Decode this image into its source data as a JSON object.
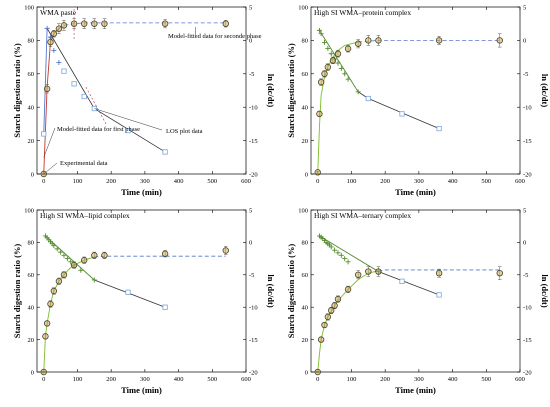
{
  "chart_data": [
    {
      "type": "scatter",
      "title": "WMA paste",
      "xlabel": "Time (min)",
      "ylabel": "Starch digestion ratio (%)",
      "y2label": "ln (dc/dt)",
      "xlim": [
        -20,
        600
      ],
      "ylim": [
        0,
        100
      ],
      "y2lim": [
        -20,
        5
      ],
      "xticks": [
        0,
        100,
        200,
        300,
        400,
        500,
        600
      ],
      "yticks": [
        0,
        20,
        40,
        60,
        80,
        100
      ],
      "y2ticks": [
        -20,
        -15,
        -10,
        -5,
        0,
        5
      ],
      "grid": false,
      "fit_left": {
        "x": [
          0,
          10,
          20,
          30,
          45,
          60,
          90,
          120,
          150,
          180,
          240,
          300,
          360,
          480,
          540
        ],
        "y": [
          0,
          52,
          79,
          84,
          87,
          89,
          90,
          90.5,
          90.5,
          90.5,
          90.5,
          90.5,
          90.5,
          90.5,
          90.5
        ]
      },
      "left_split": 45,
      "experimental": {
        "x": [
          0,
          10,
          20,
          30,
          45,
          60,
          90,
          120,
          150,
          180,
          360,
          540
        ],
        "y": [
          0,
          51,
          79,
          84,
          87,
          89,
          90,
          90,
          90,
          90,
          90,
          90
        ],
        "err": [
          0.5,
          2.5,
          2.5,
          2,
          3,
          3,
          3,
          3,
          3,
          3,
          2.5,
          2
        ]
      },
      "los": {
        "x": [
          0,
          10,
          20,
          30,
          45,
          60,
          90,
          120,
          150,
          250,
          360
        ],
        "y": [
          -14,
          1.8,
          0.5,
          -1.5,
          -3.3,
          -4.6,
          -6.5,
          -8.4,
          -10.2,
          -13.5,
          -16.7
        ]
      },
      "fit_los": {
        "x": [
          0,
          10,
          150,
          360
        ],
        "y": [
          -14,
          1.8,
          -10.2,
          -16.7
        ]
      },
      "annotations": [
        "Model-fitted data for seconde phase",
        "LOS plot data",
        "Model-fitted data for first phase",
        "Experimental data"
      ]
    },
    {
      "type": "scatter",
      "title": "High SI WMA–protein complex",
      "xlabel": "Time (min)",
      "ylabel": "Starch digestion ratio (%)",
      "y2label": "ln (dc/dt)",
      "xlim": [
        -20,
        600
      ],
      "ylim": [
        0,
        100
      ],
      "y2lim": [
        -20,
        5
      ],
      "xticks": [
        0,
        100,
        200,
        300,
        400,
        500,
        600
      ],
      "yticks": [
        0,
        20,
        40,
        60,
        80,
        100
      ],
      "y2ticks": [
        -20,
        -15,
        -10,
        -5,
        0,
        5
      ],
      "grid": false,
      "fit_left": {
        "x": [
          0,
          5,
          10,
          20,
          30,
          45,
          60,
          80,
          100,
          120,
          150,
          180,
          240,
          300,
          360,
          540
        ],
        "y": [
          0,
          28,
          47,
          58,
          64,
          70,
          74,
          77,
          78,
          79,
          79.5,
          80,
          80,
          80,
          80,
          80
        ]
      },
      "left_split": 120,
      "experimental": {
        "x": [
          0,
          5,
          10,
          20,
          30,
          45,
          60,
          90,
          120,
          150,
          180,
          360,
          540
        ],
        "y": [
          1,
          36,
          55,
          60,
          64,
          68,
          72,
          75,
          78,
          80,
          80,
          80,
          80
        ],
        "err": [
          0.5,
          1.5,
          2,
          2,
          2,
          2,
          2,
          2,
          2.5,
          3,
          3,
          2.5,
          4
        ]
      },
      "los": {
        "x": [
          5,
          10,
          20,
          30,
          40,
          50,
          60,
          70,
          80,
          90,
          120,
          150,
          250,
          360
        ],
        "y": [
          1.5,
          1.0,
          -0.3,
          -1.2,
          -2.0,
          -2.8,
          -3.4,
          -4.2,
          -5.0,
          -5.8,
          -7.7,
          -8.7,
          -11.0,
          -13.2
        ]
      },
      "fit_los": {
        "x": [
          5,
          120,
          150,
          360
        ],
        "y": [
          1.5,
          -7.7,
          -8.7,
          -13.2
        ]
      },
      "annotations": []
    },
    {
      "type": "scatter",
      "title": "High SI WMA–lipid complex",
      "xlabel": "Time (min)",
      "ylabel": "Starch digestion ratio (%)",
      "y2label": "ln (dc/dt)",
      "xlim": [
        -20,
        600
      ],
      "ylim": [
        0,
        100
      ],
      "y2lim": [
        -20,
        5
      ],
      "xticks": [
        0,
        100,
        200,
        300,
        400,
        500,
        600
      ],
      "yticks": [
        0,
        20,
        40,
        60,
        80,
        100
      ],
      "y2ticks": [
        -20,
        -15,
        -10,
        -5,
        0,
        5
      ],
      "grid": false,
      "fit_left": {
        "x": [
          0,
          5,
          10,
          20,
          30,
          45,
          60,
          75,
          90,
          120,
          150,
          180,
          240,
          300,
          360,
          540
        ],
        "y": [
          0,
          22,
          30,
          42,
          50,
          56,
          60,
          63.5,
          66,
          69,
          71,
          71.5,
          71.5,
          71.5,
          71.5,
          71.5
        ]
      },
      "left_split": 150,
      "experimental": {
        "x": [
          0,
          5,
          10,
          20,
          30,
          45,
          60,
          90,
          120,
          150,
          180,
          360,
          540
        ],
        "y": [
          0,
          22,
          30,
          42,
          50,
          56,
          60,
          66,
          69,
          72,
          72,
          73,
          75
        ],
        "err": [
          0.5,
          1.5,
          1.5,
          2,
          2,
          2,
          2,
          2,
          2,
          2,
          2,
          2,
          2.5
        ]
      },
      "los": {
        "x": [
          5,
          10,
          15,
          20,
          25,
          30,
          40,
          50,
          60,
          70,
          80,
          90,
          110,
          150,
          250,
          360
        ],
        "y": [
          1.0,
          0.7,
          0.4,
          0.1,
          -0.2,
          -0.5,
          -1.0,
          -1.5,
          -2.0,
          -2.5,
          -3.0,
          -3.5,
          -4.3,
          -5.8,
          -7.7,
          -10.0
        ]
      },
      "fit_los": {
        "x": [
          5,
          150,
          360
        ],
        "y": [
          1.0,
          -5.8,
          -10.0
        ]
      },
      "annotations": []
    },
    {
      "type": "scatter",
      "title": "High SI WMA–ternary complex",
      "xlabel": "Time (min)",
      "ylabel": "Starch digestion ratio (%)",
      "y2label": "ln (dc/dt)",
      "xlim": [
        -20,
        600
      ],
      "ylim": [
        0,
        100
      ],
      "y2lim": [
        -20,
        5
      ],
      "xticks": [
        0,
        100,
        200,
        300,
        400,
        500,
        600
      ],
      "yticks": [
        0,
        20,
        40,
        60,
        80,
        100
      ],
      "y2ticks": [
        -20,
        -15,
        -10,
        -5,
        0,
        5
      ],
      "grid": false,
      "fit_left": {
        "x": [
          0,
          5,
          10,
          20,
          30,
          45,
          60,
          90,
          120,
          150,
          180,
          200,
          240,
          300,
          360,
          540
        ],
        "y": [
          0,
          11,
          20,
          29,
          34,
          39,
          44,
          51,
          57,
          61,
          62.5,
          63,
          63,
          63,
          63,
          63
        ]
      },
      "left_split": 180,
      "experimental": {
        "x": [
          0,
          10,
          20,
          30,
          40,
          50,
          60,
          90,
          120,
          150,
          180,
          360,
          540
        ],
        "y": [
          0,
          20,
          29,
          34,
          38,
          41,
          45,
          51,
          60,
          62,
          62,
          61,
          61
        ],
        "err": [
          0.5,
          1.5,
          1.5,
          2,
          2,
          2,
          2,
          2,
          2.5,
          3,
          3,
          2.5,
          4
        ]
      },
      "los": {
        "x": [
          5,
          10,
          15,
          20,
          25,
          30,
          35,
          40,
          50,
          60,
          70,
          80,
          90,
          180,
          250,
          360
        ],
        "y": [
          1.0,
          0.8,
          0.6,
          0.3,
          0.0,
          -0.2,
          -0.4,
          -0.7,
          -1.2,
          -1.6,
          -2.0,
          -2.5,
          -3.0,
          -4.5,
          -6.0,
          -8.1
        ]
      },
      "fit_los": {
        "x": [
          5,
          180,
          360
        ],
        "y": [
          1.0,
          -4.5,
          -8.1
        ]
      },
      "annotations": []
    }
  ]
}
